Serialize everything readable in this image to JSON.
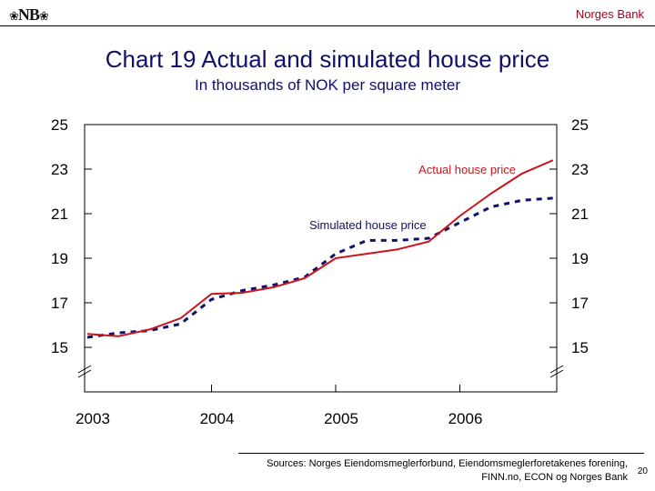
{
  "header": {
    "logo_text": "NB",
    "bank_name": "Norges Bank"
  },
  "colors": {
    "accent": "#a8001c",
    "title": "#10106a",
    "actual": "#c8161d",
    "simulated": "#10106a"
  },
  "footer": {
    "sources_line1": "Sources: Norges Eiendomsmeglerforbund, Eiendomsmeglerforetakenes forening,",
    "sources_line2": "FINN.no, ECON og Norges Bank",
    "page_number": "20"
  },
  "chart_data": {
    "type": "line",
    "title": "Chart 19 Actual and simulated house price",
    "subtitle": "In thousands of NOK per square meter",
    "ylim": [
      15,
      25
    ],
    "yticks": [
      15,
      17,
      19,
      21,
      23,
      25
    ],
    "xlim": [
      2003,
      2006.875
    ],
    "x_tick_labels": [
      "2003",
      "2004",
      "2005",
      "2006"
    ],
    "y_axis_break": true,
    "grid": false,
    "series": [
      {
        "name": "Actual house price",
        "style": "solid",
        "x": [
          2003.0,
          2003.25,
          2003.5,
          2003.75,
          2004.0,
          2004.25,
          2004.5,
          2004.75,
          2005.0,
          2005.25,
          2005.5,
          2005.75,
          2006.0,
          2006.25,
          2006.5,
          2006.75
        ],
        "values": [
          15.6,
          15.5,
          15.8,
          16.3,
          17.4,
          17.45,
          17.7,
          18.1,
          19.0,
          19.2,
          19.4,
          19.75,
          20.9,
          21.9,
          22.8,
          23.4
        ]
      },
      {
        "name": "Simulated house price",
        "style": "dashed",
        "x": [
          2003.0,
          2003.25,
          2003.5,
          2003.75,
          2004.0,
          2004.25,
          2004.5,
          2004.75,
          2005.0,
          2005.25,
          2005.5,
          2005.75,
          2006.0,
          2006.25,
          2006.5,
          2006.75
        ],
        "values": [
          15.45,
          15.65,
          15.75,
          16.05,
          17.15,
          17.55,
          17.8,
          18.15,
          19.2,
          19.8,
          19.8,
          19.9,
          20.6,
          21.3,
          21.6,
          21.7
        ]
      }
    ]
  }
}
